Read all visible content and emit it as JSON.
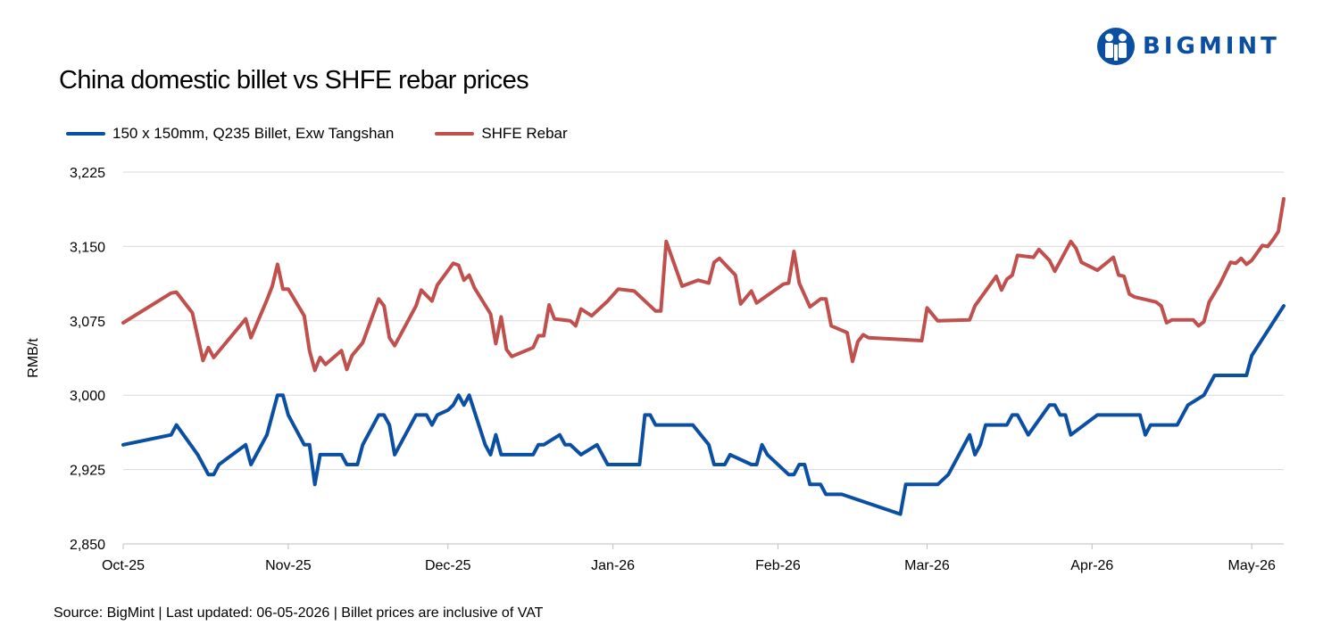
{
  "brand": {
    "name": "BIGMINT",
    "logo_color": "#0b4fa3"
  },
  "chart_data": {
    "type": "line",
    "title": "China domestic billet vs SHFE rebar prices",
    "xlabel": "",
    "ylabel": "RMB/t",
    "ylim": [
      2850,
      3225
    ],
    "yticks": [
      2850,
      2925,
      3000,
      3075,
      3150,
      3225
    ],
    "ytick_labels": [
      "2,850",
      "2,925",
      "3,000",
      "3,075",
      "3,150",
      "3,225"
    ],
    "xlim": [
      "2025-10-01",
      "2026-05-07"
    ],
    "xticks": [
      "2025-10-01",
      "2025-11-01",
      "2025-12-01",
      "2026-01-01",
      "2026-02-01",
      "2026-03-01",
      "2026-04-01",
      "2026-05-01"
    ],
    "xtick_labels": [
      "Oct-25",
      "Nov-25",
      "Dec-25",
      "Jan-26",
      "Feb-26",
      "Mar-26",
      "Apr-26",
      "May-26"
    ],
    "grid": "horizontal",
    "legend_position": "top-left",
    "series": [
      {
        "name": "150 x 150mm, Q235 Billet, Exw Tangshan",
        "color": "#0b4fa3",
        "points": [
          [
            "2025-10-01",
            2950
          ],
          [
            "2025-10-10",
            2960
          ],
          [
            "2025-10-11",
            2970
          ],
          [
            "2025-10-15",
            2940
          ],
          [
            "2025-10-17",
            2920
          ],
          [
            "2025-10-18",
            2920
          ],
          [
            "2025-10-19",
            2930
          ],
          [
            "2025-10-24",
            2950
          ],
          [
            "2025-10-25",
            2930
          ],
          [
            "2025-10-28",
            2960
          ],
          [
            "2025-10-30",
            3000
          ],
          [
            "2025-10-31",
            3000
          ],
          [
            "2025-11-01",
            2980
          ],
          [
            "2025-11-04",
            2950
          ],
          [
            "2025-11-05",
            2950
          ],
          [
            "2025-11-06",
            2910
          ],
          [
            "2025-11-07",
            2940
          ],
          [
            "2025-11-11",
            2940
          ],
          [
            "2025-11-12",
            2930
          ],
          [
            "2025-11-14",
            2930
          ],
          [
            "2025-11-15",
            2950
          ],
          [
            "2025-11-18",
            2980
          ],
          [
            "2025-11-19",
            2980
          ],
          [
            "2025-11-20",
            2970
          ],
          [
            "2025-11-21",
            2940
          ],
          [
            "2025-11-25",
            2980
          ],
          [
            "2025-11-27",
            2980
          ],
          [
            "2025-11-28",
            2970
          ],
          [
            "2025-11-29",
            2980
          ],
          [
            "2025-12-01",
            2985
          ],
          [
            "2025-12-02",
            2990
          ],
          [
            "2025-12-03",
            3000
          ],
          [
            "2025-12-04",
            2990
          ],
          [
            "2025-12-05",
            3000
          ],
          [
            "2025-12-08",
            2950
          ],
          [
            "2025-12-09",
            2940
          ],
          [
            "2025-12-10",
            2960
          ],
          [
            "2025-12-11",
            2940
          ],
          [
            "2025-12-17",
            2940
          ],
          [
            "2025-12-18",
            2950
          ],
          [
            "2025-12-19",
            2950
          ],
          [
            "2025-12-22",
            2960
          ],
          [
            "2025-12-23",
            2950
          ],
          [
            "2025-12-24",
            2950
          ],
          [
            "2025-12-26",
            2940
          ],
          [
            "2025-12-29",
            2950
          ],
          [
            "2025-12-31",
            2930
          ],
          [
            "2026-01-06",
            2930
          ],
          [
            "2026-01-07",
            2980
          ],
          [
            "2026-01-08",
            2980
          ],
          [
            "2026-01-09",
            2970
          ],
          [
            "2026-01-16",
            2970
          ],
          [
            "2026-01-19",
            2950
          ],
          [
            "2026-01-20",
            2930
          ],
          [
            "2026-01-22",
            2930
          ],
          [
            "2026-01-23",
            2940
          ],
          [
            "2026-01-27",
            2930
          ],
          [
            "2026-01-28",
            2930
          ],
          [
            "2026-01-29",
            2950
          ],
          [
            "2026-01-30",
            2940
          ],
          [
            "2026-02-03",
            2920
          ],
          [
            "2026-02-04",
            2920
          ],
          [
            "2026-02-05",
            2930
          ],
          [
            "2026-02-06",
            2930
          ],
          [
            "2026-02-07",
            2910
          ],
          [
            "2026-02-09",
            2910
          ],
          [
            "2026-02-10",
            2900
          ],
          [
            "2026-02-13",
            2900
          ],
          [
            "2026-02-24",
            2880
          ],
          [
            "2026-02-25",
            2910
          ],
          [
            "2026-03-03",
            2910
          ],
          [
            "2026-03-05",
            2920
          ],
          [
            "2026-03-09",
            2960
          ],
          [
            "2026-03-10",
            2940
          ],
          [
            "2026-03-11",
            2950
          ],
          [
            "2026-03-12",
            2970
          ],
          [
            "2026-03-16",
            2970
          ],
          [
            "2026-03-17",
            2980
          ],
          [
            "2026-03-18",
            2980
          ],
          [
            "2026-03-20",
            2960
          ],
          [
            "2026-03-24",
            2990
          ],
          [
            "2026-03-25",
            2990
          ],
          [
            "2026-03-26",
            2980
          ],
          [
            "2026-03-27",
            2980
          ],
          [
            "2026-03-28",
            2960
          ],
          [
            "2026-04-02",
            2980
          ],
          [
            "2026-04-09",
            2980
          ],
          [
            "2026-04-10",
            2980
          ],
          [
            "2026-04-11",
            2960
          ],
          [
            "2026-04-12",
            2970
          ],
          [
            "2026-04-17",
            2970
          ],
          [
            "2026-04-19",
            2990
          ],
          [
            "2026-04-22",
            3000
          ],
          [
            "2026-04-24",
            3020
          ],
          [
            "2026-04-30",
            3020
          ],
          [
            "2026-05-01",
            3040
          ],
          [
            "2026-05-07",
            3090
          ]
        ]
      },
      {
        "name": "SHFE Rebar",
        "color": "#c0504d",
        "points": [
          [
            "2025-10-01",
            3073
          ],
          [
            "2025-10-10",
            3103
          ],
          [
            "2025-10-11",
            3104
          ],
          [
            "2025-10-14",
            3083
          ],
          [
            "2025-10-16",
            3035
          ],
          [
            "2025-10-17",
            3048
          ],
          [
            "2025-10-18",
            3038
          ],
          [
            "2025-10-24",
            3077
          ],
          [
            "2025-10-25",
            3058
          ],
          [
            "2025-10-28",
            3096
          ],
          [
            "2025-10-29",
            3110
          ],
          [
            "2025-10-30",
            3132
          ],
          [
            "2025-10-31",
            3107
          ],
          [
            "2025-11-01",
            3107
          ],
          [
            "2025-11-04",
            3080
          ],
          [
            "2025-11-05",
            3045
          ],
          [
            "2025-11-06",
            3025
          ],
          [
            "2025-11-07",
            3038
          ],
          [
            "2025-11-08",
            3031
          ],
          [
            "2025-11-11",
            3045
          ],
          [
            "2025-11-12",
            3026
          ],
          [
            "2025-11-13",
            3040
          ],
          [
            "2025-11-15",
            3053
          ],
          [
            "2025-11-18",
            3097
          ],
          [
            "2025-11-19",
            3090
          ],
          [
            "2025-11-20",
            3058
          ],
          [
            "2025-11-21",
            3050
          ],
          [
            "2025-11-22",
            3060
          ],
          [
            "2025-11-25",
            3090
          ],
          [
            "2025-11-26",
            3106
          ],
          [
            "2025-11-28",
            3095
          ],
          [
            "2025-11-29",
            3111
          ],
          [
            "2025-12-02",
            3133
          ],
          [
            "2025-12-03",
            3131
          ],
          [
            "2025-12-04",
            3116
          ],
          [
            "2025-12-05",
            3121
          ],
          [
            "2025-12-06",
            3108
          ],
          [
            "2025-12-09",
            3082
          ],
          [
            "2025-12-10",
            3052
          ],
          [
            "2025-12-11",
            3079
          ],
          [
            "2025-12-12",
            3046
          ],
          [
            "2025-12-13",
            3039
          ],
          [
            "2025-12-17",
            3048
          ],
          [
            "2025-12-18",
            3060
          ],
          [
            "2025-12-19",
            3060
          ],
          [
            "2025-12-20",
            3091
          ],
          [
            "2025-12-21",
            3077
          ],
          [
            "2025-12-24",
            3075
          ],
          [
            "2025-12-25",
            3070
          ],
          [
            "2025-12-26",
            3087
          ],
          [
            "2025-12-28",
            3080
          ],
          [
            "2025-12-31",
            3095
          ],
          [
            "2026-01-02",
            3107
          ],
          [
            "2026-01-05",
            3105
          ],
          [
            "2026-01-09",
            3085
          ],
          [
            "2026-01-10",
            3085
          ],
          [
            "2026-01-11",
            3155
          ],
          [
            "2026-01-14",
            3110
          ],
          [
            "2026-01-17",
            3116
          ],
          [
            "2026-01-19",
            3113
          ],
          [
            "2026-01-20",
            3134
          ],
          [
            "2026-01-21",
            3138
          ],
          [
            "2026-01-24",
            3121
          ],
          [
            "2026-01-25",
            3092
          ],
          [
            "2026-01-27",
            3105
          ],
          [
            "2026-01-28",
            3093
          ],
          [
            "2026-02-02",
            3112
          ],
          [
            "2026-02-03",
            3113
          ],
          [
            "2026-02-04",
            3145
          ],
          [
            "2026-02-05",
            3113
          ],
          [
            "2026-02-07",
            3089
          ],
          [
            "2026-02-09",
            3097
          ],
          [
            "2026-02-10",
            3097
          ],
          [
            "2026-02-11",
            3070
          ],
          [
            "2026-02-14",
            3063
          ],
          [
            "2026-02-15",
            3034
          ],
          [
            "2026-02-16",
            3054
          ],
          [
            "2026-02-17",
            3061
          ],
          [
            "2026-02-18",
            3058
          ],
          [
            "2026-02-28",
            3055
          ],
          [
            "2026-03-01",
            3088
          ],
          [
            "2026-03-03",
            3075
          ],
          [
            "2026-03-09",
            3076
          ],
          [
            "2026-03-10",
            3090
          ],
          [
            "2026-03-14",
            3120
          ],
          [
            "2026-03-15",
            3106
          ],
          [
            "2026-03-16",
            3117
          ],
          [
            "2026-03-17",
            3121
          ],
          [
            "2026-03-18",
            3141
          ],
          [
            "2026-03-21",
            3139
          ],
          [
            "2026-03-22",
            3147
          ],
          [
            "2026-03-24",
            3136
          ],
          [
            "2026-03-25",
            3125
          ],
          [
            "2026-03-28",
            3155
          ],
          [
            "2026-03-29",
            3148
          ],
          [
            "2026-03-30",
            3134
          ],
          [
            "2026-04-02",
            3126
          ],
          [
            "2026-04-05",
            3139
          ],
          [
            "2026-04-06",
            3121
          ],
          [
            "2026-04-07",
            3120
          ],
          [
            "2026-04-08",
            3102
          ],
          [
            "2026-04-09",
            3099
          ],
          [
            "2026-04-13",
            3094
          ],
          [
            "2026-04-14",
            3090
          ],
          [
            "2026-04-15",
            3073
          ],
          [
            "2026-04-16",
            3076
          ],
          [
            "2026-04-20",
            3076
          ],
          [
            "2026-04-21",
            3070
          ],
          [
            "2026-04-22",
            3074
          ],
          [
            "2026-04-23",
            3094
          ],
          [
            "2026-04-25",
            3112
          ],
          [
            "2026-04-27",
            3134
          ],
          [
            "2026-04-28",
            3133
          ],
          [
            "2026-04-29",
            3138
          ],
          [
            "2026-04-30",
            3132
          ],
          [
            "2026-05-01",
            3136
          ],
          [
            "2026-05-03",
            3151
          ],
          [
            "2026-05-04",
            3150
          ],
          [
            "2026-05-05",
            3157
          ],
          [
            "2026-05-06",
            3165
          ],
          [
            "2026-05-07",
            3198
          ]
        ]
      }
    ]
  },
  "footer": {
    "source_note": "Source: BigMint | Last updated: 06-05-2026 | Billet prices are inclusive of VAT"
  }
}
